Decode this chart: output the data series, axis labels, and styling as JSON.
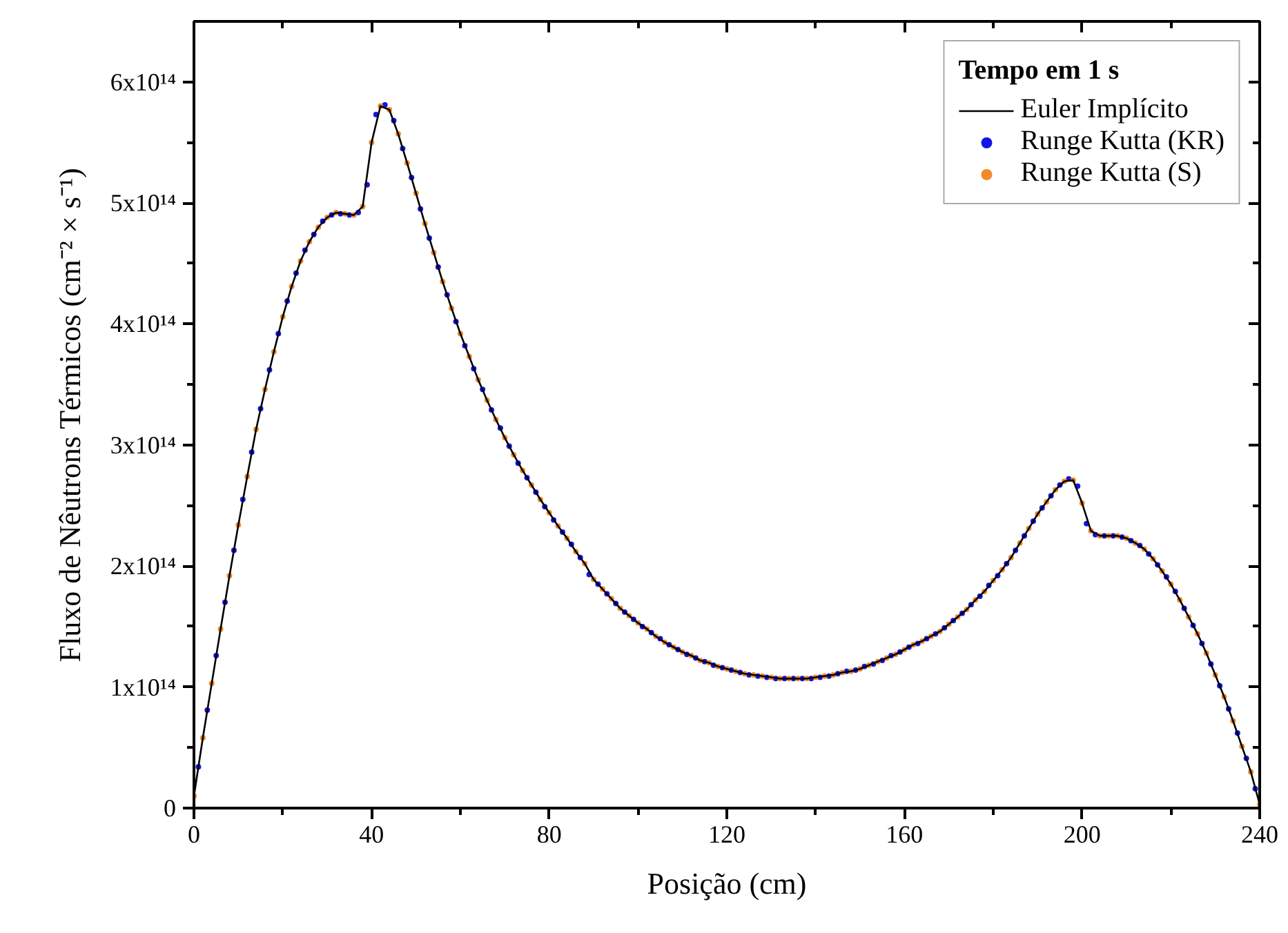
{
  "chart_data": {
    "type": "line",
    "xlabel": "Posição (cm)",
    "ylabel": "Fluxo de Nêutrons Térmicos (cm⁻² × s⁻¹)",
    "legend_title": "Tempo em 1 s",
    "legend": "top right",
    "xlim": [
      0,
      240
    ],
    "ylim": [
      0,
      650000000000000.0
    ],
    "xticks": [
      0,
      40,
      80,
      120,
      160,
      200,
      240
    ],
    "yticks": [
      0,
      {
        "value": 100000000000000.0,
        "label": "1x10¹⁴"
      },
      {
        "value": 200000000000000.0,
        "label": "2x10¹⁴"
      },
      {
        "value": 300000000000000.0,
        "label": "3x10¹⁴"
      },
      {
        "value": 400000000000000.0,
        "label": "4x10¹⁴"
      },
      {
        "value": 500000000000000.0,
        "label": "5x10¹⁴"
      },
      {
        "value": 600000000000000.0,
        "label": "6x10¹⁴"
      }
    ],
    "series": [
      {
        "name": "Euler Implícito",
        "type": "line",
        "color": "#000000",
        "line_style": "solid",
        "x": [
          0,
          2,
          4,
          6,
          8,
          10,
          12,
          14,
          16,
          18,
          20,
          22,
          24,
          26,
          28,
          30,
          32,
          34,
          36,
          38,
          40,
          42,
          44,
          46,
          48,
          50,
          52,
          54,
          56,
          58,
          60,
          62,
          64,
          66,
          68,
          70,
          72,
          74,
          76,
          78,
          80,
          82,
          84,
          86,
          88,
          90,
          92,
          94,
          96,
          98,
          100,
          102,
          104,
          106,
          108,
          110,
          112,
          114,
          116,
          118,
          120,
          122,
          124,
          126,
          128,
          130,
          132,
          134,
          136,
          138,
          140,
          142,
          144,
          146,
          148,
          150,
          152,
          154,
          156,
          158,
          160,
          162,
          164,
          166,
          168,
          170,
          172,
          174,
          176,
          178,
          180,
          182,
          184,
          186,
          188,
          190,
          192,
          194,
          196,
          198,
          200,
          202,
          204,
          206,
          208,
          210,
          212,
          214,
          216,
          218,
          220,
          222,
          224,
          226,
          228,
          230,
          232,
          234,
          236,
          238,
          240
        ],
        "values": [
          10000000000000.0,
          58000000000000.0,
          103000000000000.0,
          148000000000000.0,
          192000000000000.0,
          234000000000000.0,
          274000000000000.0,
          313000000000000.0,
          346000000000000.0,
          377000000000000.0,
          406000000000000.0,
          431000000000000.0,
          452000000000000.0,
          468000000000000.0,
          480000000000000.0,
          488000000000000.0,
          492000000000000.0,
          491000000000000.0,
          490000000000000.0,
          497000000000000.0,
          550000000000000.0,
          580000000000000.0,
          577000000000000.0,
          557000000000000.0,
          533000000000000.0,
          508000000000000.0,
          483000000000000.0,
          459000000000000.0,
          435000000000000.0,
          413000000000000.0,
          392000000000000.0,
          373000000000000.0,
          354000000000000.0,
          337000000000000.0,
          321000000000000.0,
          306000000000000.0,
          292000000000000.0,
          279000000000000.0,
          267000000000000.0,
          255000000000000.0,
          244000000000000.0,
          233000000000000.0,
          223000000000000.0,
          212000000000000.0,
          202000000000000.0,
          189000000000000.0,
          181000000000000.0,
          173000000000000.0,
          165000000000000.0,
          159000000000000.0,
          153000000000000.0,
          148000000000000.0,
          142000000000000.0,
          137000000000000.0,
          133000000000000.0,
          129000000000000.0,
          126000000000000.0,
          122000000000000.0,
          120000000000000.0,
          117000000000000.0,
          115000000000000.0,
          113000000000000.0,
          111000000000000.0,
          110000000000000.0,
          109000000000000.0,
          108000000000000.0,
          107000000000000.0,
          107000000000000.0,
          107000000000000.0,
          107000000000000.0,
          108000000000000.0,
          109000000000000.0,
          110000000000000.0,
          112000000000000.0,
          113000000000000.0,
          115000000000000.0,
          118000000000000.0,
          121000000000000.0,
          124000000000000.0,
          127000000000000.0,
          131000000000000.0,
          135000000000000.0,
          138000000000000.0,
          142000000000000.0,
          146000000000000.0,
          152000000000000.0,
          158000000000000.0,
          164000000000000.0,
          172000000000000.0,
          179000000000000.0,
          188000000000000.0,
          197000000000000.0,
          207000000000000.0,
          219000000000000.0,
          231000000000000.0,
          243000000000000.0,
          253000000000000.0,
          263000000000000.0,
          270000000000000.0,
          271000000000000.0,
          252000000000000.0,
          229000000000000.0,
          225000000000000.0,
          225000000000000.0,
          225000000000000.0,
          223000000000000.0,
          219000000000000.0,
          214000000000000.0,
          206000000000000.0,
          196000000000000.0,
          185000000000000.0,
          172000000000000.0,
          158000000000000.0,
          144000000000000.0,
          128000000000000.0,
          110000000000000.0,
          92000000000000.0,
          72000000000000.0,
          51000000000000.0,
          30000000000000.0,
          3000000000000.0
        ]
      },
      {
        "name": "Runge Kutta (KR)",
        "type": "scatter",
        "color": "#1414e6",
        "marker": "circle",
        "x": [
          1,
          3,
          5,
          7,
          9,
          11,
          13,
          15,
          17,
          19,
          21,
          23,
          25,
          27,
          29,
          31,
          33,
          35,
          37,
          39,
          41,
          43,
          45,
          47,
          49,
          51,
          53,
          55,
          57,
          59,
          61,
          63,
          65,
          67,
          69,
          71,
          73,
          75,
          77,
          79,
          81,
          83,
          85,
          87,
          89,
          91,
          93,
          95,
          97,
          99,
          101,
          103,
          105,
          107,
          109,
          111,
          113,
          115,
          117,
          119,
          121,
          123,
          125,
          127,
          129,
          131,
          133,
          135,
          137,
          139,
          141,
          143,
          145,
          147,
          149,
          151,
          153,
          155,
          157,
          159,
          161,
          163,
          165,
          167,
          169,
          171,
          173,
          175,
          177,
          179,
          181,
          183,
          185,
          187,
          189,
          191,
          193,
          195,
          197,
          199,
          201,
          203,
          205,
          207,
          209,
          211,
          213,
          215,
          217,
          219,
          221,
          223,
          225,
          227,
          229,
          231,
          233,
          235,
          237,
          239
        ],
        "values": [
          34000000000000.0,
          81000000000000.0,
          126000000000000.0,
          170000000000000.0,
          213000000000000.0,
          255000000000000.0,
          294000000000000.0,
          330000000000000.0,
          362000000000000.0,
          392000000000000.0,
          419000000000000.0,
          442000000000000.0,
          461000000000000.0,
          474000000000000.0,
          485000000000000.0,
          490000000000000.0,
          491000000000000.0,
          490000000000000.0,
          492000000000000.0,
          515000000000000.0,
          573000000000000.0,
          581000000000000.0,
          568000000000000.0,
          545000000000000.0,
          521000000000000.0,
          495000000000000.0,
          471000000000000.0,
          447000000000000.0,
          424000000000000.0,
          402000000000000.0,
          382000000000000.0,
          363000000000000.0,
          346000000000000.0,
          329000000000000.0,
          314000000000000.0,
          299000000000000.0,
          285000000000000.0,
          273000000000000.0,
          261000000000000.0,
          249000000000000.0,
          238000000000000.0,
          228000000000000.0,
          218000000000000.0,
          207000000000000.0,
          193000000000000.0,
          185000000000000.0,
          177000000000000.0,
          169000000000000.0,
          162000000000000.0,
          156000000000000.0,
          150000000000000.0,
          145000000000000.0,
          140000000000000.0,
          135000000000000.0,
          131000000000000.0,
          127000000000000.0,
          124000000000000.0,
          121000000000000.0,
          118000000000000.0,
          116000000000000.0,
          114000000000000.0,
          112000000000000.0,
          110000000000000.0,
          109000000000000.0,
          108000000000000.0,
          107000000000000.0,
          107000000000000.0,
          107000000000000.0,
          107000000000000.0,
          107000000000000.0,
          108000000000000.0,
          109000000000000.0,
          111000000000000.0,
          113000000000000.0,
          114000000000000.0,
          117000000000000.0,
          119000000000000.0,
          122000000000000.0,
          126000000000000.0,
          129000000000000.0,
          133000000000000.0,
          136000000000000.0,
          140000000000000.0,
          144000000000000.0,
          149000000000000.0,
          155000000000000.0,
          161000000000000.0,
          168000000000000.0,
          175000000000000.0,
          184000000000000.0,
          192000000000000.0,
          202000000000000.0,
          213000000000000.0,
          225000000000000.0,
          237000000000000.0,
          248000000000000.0,
          258000000000000.0,
          267000000000000.0,
          272000000000000.0,
          266000000000000.0,
          235000000000000.0,
          226000000000000.0,
          225000000000000.0,
          225000000000000.0,
          224000000000000.0,
          221000000000000.0,
          217000000000000.0,
          210000000000000.0,
          201000000000000.0,
          191000000000000.0,
          179000000000000.0,
          165000000000000.0,
          151000000000000.0,
          136000000000000.0,
          119000000000000.0,
          101000000000000.0,
          82000000000000.0,
          62000000000000.0,
          41000000000000.0,
          16000000000000.0
        ]
      },
      {
        "name": "Runge Kutta (S)",
        "type": "scatter",
        "color": "#f08a2c",
        "marker": "circle",
        "x": [
          0,
          2,
          4,
          6,
          8,
          10,
          12,
          14,
          16,
          18,
          20,
          22,
          24,
          26,
          28,
          30,
          32,
          34,
          36,
          38,
          40,
          42,
          44,
          46,
          48,
          50,
          52,
          54,
          56,
          58,
          60,
          62,
          64,
          66,
          68,
          70,
          72,
          74,
          76,
          78,
          80,
          82,
          84,
          86,
          88,
          90,
          92,
          94,
          96,
          98,
          100,
          102,
          104,
          106,
          108,
          110,
          112,
          114,
          116,
          118,
          120,
          122,
          124,
          126,
          128,
          130,
          132,
          134,
          136,
          138,
          140,
          142,
          144,
          146,
          148,
          150,
          152,
          154,
          156,
          158,
          160,
          162,
          164,
          166,
          168,
          170,
          172,
          174,
          176,
          178,
          180,
          182,
          184,
          186,
          188,
          190,
          192,
          194,
          196,
          198,
          200,
          202,
          204,
          206,
          208,
          210,
          212,
          214,
          216,
          218,
          220,
          222,
          224,
          226,
          228,
          230,
          232,
          234,
          236,
          238,
          240
        ],
        "values": [
          10000000000000.0,
          58000000000000.0,
          103000000000000.0,
          148000000000000.0,
          192000000000000.0,
          234000000000000.0,
          274000000000000.0,
          313000000000000.0,
          346000000000000.0,
          377000000000000.0,
          406000000000000.0,
          431000000000000.0,
          452000000000000.0,
          468000000000000.0,
          480000000000000.0,
          488000000000000.0,
          492000000000000.0,
          491000000000000.0,
          490000000000000.0,
          497000000000000.0,
          550000000000000.0,
          580000000000000.0,
          577000000000000.0,
          557000000000000.0,
          533000000000000.0,
          508000000000000.0,
          483000000000000.0,
          459000000000000.0,
          435000000000000.0,
          413000000000000.0,
          392000000000000.0,
          373000000000000.0,
          354000000000000.0,
          337000000000000.0,
          321000000000000.0,
          306000000000000.0,
          292000000000000.0,
          279000000000000.0,
          267000000000000.0,
          255000000000000.0,
          244000000000000.0,
          233000000000000.0,
          223000000000000.0,
          212000000000000.0,
          202000000000000.0,
          189000000000000.0,
          181000000000000.0,
          173000000000000.0,
          165000000000000.0,
          159000000000000.0,
          153000000000000.0,
          148000000000000.0,
          142000000000000.0,
          137000000000000.0,
          133000000000000.0,
          129000000000000.0,
          126000000000000.0,
          122000000000000.0,
          120000000000000.0,
          117000000000000.0,
          115000000000000.0,
          113000000000000.0,
          111000000000000.0,
          110000000000000.0,
          109000000000000.0,
          108000000000000.0,
          107000000000000.0,
          107000000000000.0,
          107000000000000.0,
          107000000000000.0,
          108000000000000.0,
          109000000000000.0,
          110000000000000.0,
          112000000000000.0,
          113000000000000.0,
          115000000000000.0,
          118000000000000.0,
          121000000000000.0,
          124000000000000.0,
          127000000000000.0,
          131000000000000.0,
          135000000000000.0,
          138000000000000.0,
          142000000000000.0,
          146000000000000.0,
          152000000000000.0,
          158000000000000.0,
          164000000000000.0,
          172000000000000.0,
          179000000000000.0,
          188000000000000.0,
          197000000000000.0,
          207000000000000.0,
          219000000000000.0,
          231000000000000.0,
          243000000000000.0,
          253000000000000.0,
          263000000000000.0,
          270000000000000.0,
          271000000000000.0,
          252000000000000.0,
          229000000000000.0,
          225000000000000.0,
          225000000000000.0,
          225000000000000.0,
          223000000000000.0,
          219000000000000.0,
          214000000000000.0,
          206000000000000.0,
          196000000000000.0,
          185000000000000.0,
          172000000000000.0,
          158000000000000.0,
          144000000000000.0,
          128000000000000.0,
          110000000000000.0,
          92000000000000.0,
          72000000000000.0,
          51000000000000.0,
          30000000000000.0,
          3000000000000.0
        ]
      }
    ]
  }
}
